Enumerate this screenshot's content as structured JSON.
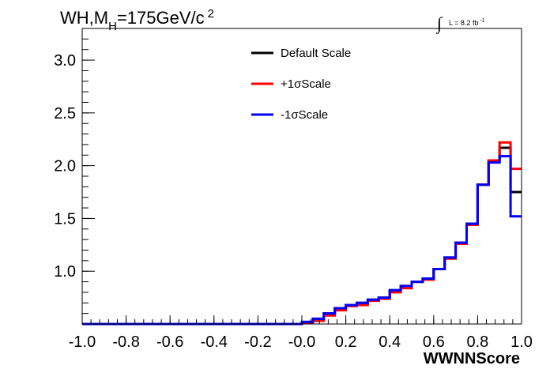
{
  "chart_data": {
    "type": "line",
    "title_parts": {
      "main": "WH,M",
      "sub": "H",
      "rest": "=175GeV/c",
      "sup": "2"
    },
    "lumi_label": "L = 8.2 fb",
    "lumi_sup": "-1",
    "integral_symbol": "∫",
    "xlabel": "WWNNScore",
    "ylabel": "",
    "xlim": [
      -1.0,
      1.0
    ],
    "ylim": [
      0.5,
      3.3
    ],
    "x_ticks": [
      -1.0,
      -0.8,
      -0.6,
      -0.4,
      -0.2,
      0.0,
      0.2,
      0.4,
      0.6,
      0.8,
      1.0
    ],
    "x_tick_labels": [
      "-1.0",
      "-0.8",
      "-0.6",
      "-0.4",
      "-0.2",
      "-0.0",
      "0.2",
      "0.4",
      "0.6",
      "0.8",
      "1.0"
    ],
    "y_ticks": [
      1.0,
      1.5,
      2.0,
      2.5,
      3.0
    ],
    "y_tick_labels": [
      "1.0",
      "1.5",
      "2.0",
      "2.5",
      "3.0"
    ],
    "grid": false,
    "legend_position": "top-center",
    "bin_edges": [
      -1.0,
      -0.95,
      -0.9,
      -0.85,
      -0.8,
      -0.75,
      -0.7,
      -0.65,
      -0.6,
      -0.55,
      -0.5,
      -0.45,
      -0.4,
      -0.35,
      -0.3,
      -0.25,
      -0.2,
      -0.15,
      -0.1,
      -0.05,
      0.0,
      0.05,
      0.1,
      0.15,
      0.2,
      0.25,
      0.3,
      0.35,
      0.4,
      0.45,
      0.5,
      0.55,
      0.6,
      0.65,
      0.7,
      0.75,
      0.8,
      0.85,
      0.9,
      0.95,
      1.0
    ],
    "series": [
      {
        "name": "Default Scale",
        "color": "#000000",
        "values": [
          0.5,
          0.5,
          0.5,
          0.5,
          0.5,
          0.5,
          0.5,
          0.5,
          0.5,
          0.5,
          0.5,
          0.5,
          0.5,
          0.5,
          0.5,
          0.5,
          0.5,
          0.5,
          0.5,
          0.5,
          0.52,
          0.55,
          0.6,
          0.65,
          0.68,
          0.7,
          0.73,
          0.75,
          0.82,
          0.86,
          0.9,
          0.93,
          1.02,
          1.13,
          1.27,
          1.45,
          1.82,
          2.05,
          2.17,
          1.75
        ]
      },
      {
        "name": "+1σScale",
        "color": "#ff0000",
        "values": [
          0.5,
          0.5,
          0.5,
          0.5,
          0.5,
          0.5,
          0.5,
          0.5,
          0.5,
          0.5,
          0.5,
          0.5,
          0.5,
          0.5,
          0.5,
          0.5,
          0.5,
          0.5,
          0.5,
          0.5,
          0.51,
          0.53,
          0.58,
          0.63,
          0.67,
          0.68,
          0.72,
          0.74,
          0.8,
          0.84,
          0.9,
          0.92,
          1.02,
          1.12,
          1.26,
          1.44,
          1.82,
          2.05,
          2.22,
          1.97
        ]
      },
      {
        "name": "-1σScale",
        "color": "#0000ff",
        "values": [
          0.5,
          0.5,
          0.5,
          0.5,
          0.5,
          0.5,
          0.5,
          0.5,
          0.5,
          0.5,
          0.5,
          0.5,
          0.5,
          0.5,
          0.5,
          0.5,
          0.5,
          0.5,
          0.5,
          0.5,
          0.52,
          0.55,
          0.6,
          0.65,
          0.68,
          0.7,
          0.73,
          0.75,
          0.82,
          0.86,
          0.9,
          0.93,
          1.02,
          1.13,
          1.27,
          1.45,
          1.82,
          2.03,
          2.09,
          1.52
        ]
      }
    ]
  }
}
